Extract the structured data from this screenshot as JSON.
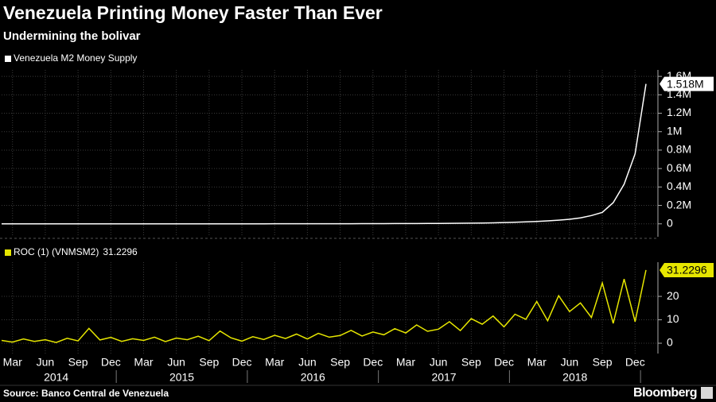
{
  "header": {
    "title": "Venezuela Printing Money Faster Than Ever",
    "subtitle": "Undermining the bolivar"
  },
  "footer": {
    "source": "Source: Banco Central de Venezuela",
    "brand": "Bloomberg"
  },
  "chart_data": [
    {
      "type": "line",
      "x": [
        "2014-02",
        "2014-03",
        "2014-04",
        "2014-05",
        "2014-06",
        "2014-07",
        "2014-08",
        "2014-09",
        "2014-10",
        "2014-11",
        "2014-12",
        "2015-01",
        "2015-02",
        "2015-03",
        "2015-04",
        "2015-05",
        "2015-06",
        "2015-07",
        "2015-08",
        "2015-09",
        "2015-10",
        "2015-11",
        "2015-12",
        "2016-01",
        "2016-02",
        "2016-03",
        "2016-04",
        "2016-05",
        "2016-06",
        "2016-07",
        "2016-08",
        "2016-09",
        "2016-10",
        "2016-11",
        "2016-12",
        "2017-01",
        "2017-02",
        "2017-03",
        "2017-04",
        "2017-05",
        "2017-06",
        "2017-07",
        "2017-08",
        "2017-09",
        "2017-10",
        "2017-11",
        "2017-12",
        "2018-01",
        "2018-02",
        "2018-03",
        "2018-04",
        "2018-05",
        "2018-06",
        "2018-07",
        "2018-08",
        "2018-09",
        "2018-10",
        "2018-11",
        "2018-12",
        "2019-01"
      ],
      "xlim": [
        "2014-02",
        "2019-01"
      ],
      "series": [
        {
          "name": "Venezuela M2 Money Supply",
          "color": "#ffffff",
          "values": [
            250,
            260,
            270,
            280,
            290,
            300,
            310,
            320,
            340,
            360,
            380,
            400,
            420,
            440,
            460,
            490,
            520,
            550,
            590,
            630,
            680,
            730,
            800,
            850,
            900,
            950,
            1000,
            1080,
            1150,
            1250,
            1350,
            1500,
            1700,
            1900,
            2200,
            2500,
            2800,
            3100,
            3500,
            4000,
            4600,
            5300,
            6200,
            7500,
            9000,
            11000,
            14000,
            17000,
            21000,
            26000,
            32000,
            40000,
            50000,
            65000,
            90000,
            125000,
            230000,
            430000,
            760000,
            1518000
          ],
          "value_labels": [
            null,
            null,
            null,
            null,
            null,
            null,
            null,
            null,
            null,
            null,
            null,
            null,
            null,
            null,
            null,
            null,
            null,
            null,
            null,
            null,
            null,
            null,
            null,
            null,
            null,
            null,
            null,
            null,
            null,
            null,
            null,
            null,
            null,
            null,
            null,
            null,
            null,
            null,
            null,
            null,
            null,
            null,
            null,
            null,
            null,
            null,
            null,
            null,
            null,
            null,
            null,
            null,
            null,
            null,
            null,
            null,
            null,
            null,
            null,
            "1.518M"
          ]
        }
      ],
      "ylim": [
        -140000,
        1670000
      ],
      "yticks": [
        0,
        {
          "value": 200000,
          "label": "0.2M"
        },
        {
          "value": 400000,
          "label": "0.4M"
        },
        {
          "value": 600000,
          "label": "0.6M"
        },
        {
          "value": 800000,
          "label": "0.8M"
        },
        {
          "value": 1000000,
          "label": "1M"
        },
        {
          "value": 1200000,
          "label": "1.2M"
        },
        {
          "value": 1400000,
          "label": "1.4M"
        },
        {
          "value": 1600000,
          "label": "1.6M"
        }
      ],
      "grid": true
    },
    {
      "type": "line",
      "x": [
        "2014-02",
        "2014-03",
        "2014-04",
        "2014-05",
        "2014-06",
        "2014-07",
        "2014-08",
        "2014-09",
        "2014-10",
        "2014-11",
        "2014-12",
        "2015-01",
        "2015-02",
        "2015-03",
        "2015-04",
        "2015-05",
        "2015-06",
        "2015-07",
        "2015-08",
        "2015-09",
        "2015-10",
        "2015-11",
        "2015-12",
        "2016-01",
        "2016-02",
        "2016-03",
        "2016-04",
        "2016-05",
        "2016-06",
        "2016-07",
        "2016-08",
        "2016-09",
        "2016-10",
        "2016-11",
        "2016-12",
        "2017-01",
        "2017-02",
        "2017-03",
        "2017-04",
        "2017-05",
        "2017-06",
        "2017-07",
        "2017-08",
        "2017-09",
        "2017-10",
        "2017-11",
        "2017-12",
        "2018-01",
        "2018-02",
        "2018-03",
        "2018-04",
        "2018-05",
        "2018-06",
        "2018-07",
        "2018-08",
        "2018-09",
        "2018-10",
        "2018-11",
        "2018-12",
        "2019-01"
      ],
      "xlim": [
        "2014-02",
        "2019-01"
      ],
      "series": [
        {
          "name": "ROC (1) (VNMSM2)",
          "color": "#e6e600",
          "values": [
            1.2,
            0.5,
            1.8,
            0.8,
            1.5,
            0.3,
            2.1,
            1.0,
            6.3,
            1.4,
            2.5,
            0.8,
            1.9,
            1.2,
            2.6,
            0.7,
            2.2,
            1.5,
            3.0,
            1.1,
            5.2,
            2.3,
            0.9,
            2.8,
            1.6,
            3.4,
            2.0,
            3.9,
            1.8,
            4.2,
            2.6,
            3.3,
            5.5,
            3.1,
            4.8,
            3.6,
            6.2,
            4.4,
            7.8,
            5.1,
            6.0,
            9.2,
            5.4,
            10.5,
            8.1,
            11.6,
            7.0,
            12.4,
            10.2,
            17.8,
            9.6,
            20.3,
            13.5,
            17.2,
            11.0,
            25.7,
            8.5,
            27.4,
            9.2,
            31.2296
          ]
        }
      ],
      "ylim": [
        -4.4,
        34.6
      ],
      "yticks": [
        0,
        10,
        20
      ],
      "xticks": [
        {
          "value": "2014-03",
          "label": "Mar"
        },
        {
          "value": "2014-06",
          "label": "Jun"
        },
        {
          "value": "2014-09",
          "label": "Sep"
        },
        {
          "value": "2014-12",
          "label": "Dec"
        },
        {
          "value": "2015-03",
          "label": "Mar"
        },
        {
          "value": "2015-06",
          "label": "Jun"
        },
        {
          "value": "2015-09",
          "label": "Sep"
        },
        {
          "value": "2015-12",
          "label": "Dec"
        },
        {
          "value": "2016-03",
          "label": "Mar"
        },
        {
          "value": "2016-06",
          "label": "Jun"
        },
        {
          "value": "2016-09",
          "label": "Sep"
        },
        {
          "value": "2016-12",
          "label": "Dec"
        },
        {
          "value": "2017-03",
          "label": "Mar"
        },
        {
          "value": "2017-06",
          "label": "Jun"
        },
        {
          "value": "2017-09",
          "label": "Sep"
        },
        {
          "value": "2017-12",
          "label": "Dec"
        },
        {
          "value": "2018-03",
          "label": "Mar"
        },
        {
          "value": "2018-06",
          "label": "Jun"
        },
        {
          "value": "2018-09",
          "label": "Sep"
        },
        {
          "value": "2018-12",
          "label": "Dec"
        }
      ],
      "xyears": [
        2014,
        2015,
        2016,
        2017,
        2018
      ],
      "grid": true
    }
  ]
}
